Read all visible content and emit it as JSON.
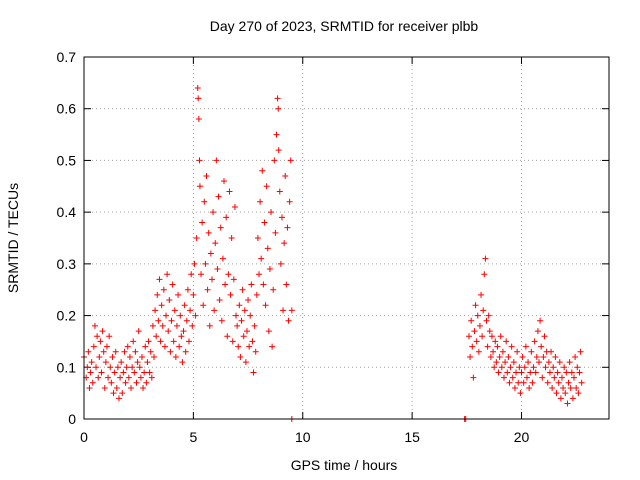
{
  "chart_data": {
    "type": "scatter",
    "title": "Day 270 of 2023, SRMTID for receiver plbb",
    "xlabel": "GPS time / hours",
    "ylabel": "SRMTID / TECUs",
    "xlim": [
      0,
      24
    ],
    "ylim": [
      0,
      0.7
    ],
    "xticks": [
      0,
      5,
      10,
      15,
      20
    ],
    "xtick_labels": [
      "0",
      "5",
      "10",
      "15",
      "20"
    ],
    "yticks": [
      0,
      0.1,
      0.2,
      0.3,
      0.4,
      0.5,
      0.6,
      0.7
    ],
    "ytick_labels": [
      "0",
      "0.1",
      "0.2",
      "0.3",
      "0.4",
      "0.5",
      "0.6",
      "0.7"
    ],
    "grid": true,
    "marker": "+",
    "colors": {
      "series": "#ff0000",
      "grid": "#a0a0a0",
      "axis": "#000000"
    },
    "series": [
      {
        "name": "SRMTID",
        "points": [
          [
            0.0,
            0.12
          ],
          [
            0.1,
            0.08
          ],
          [
            0.15,
            0.1
          ],
          [
            0.2,
            0.13
          ],
          [
            0.25,
            0.06
          ],
          [
            0.3,
            0.09
          ],
          [
            0.35,
            0.11
          ],
          [
            0.4,
            0.07
          ],
          [
            0.45,
            0.14
          ],
          [
            0.5,
            0.18
          ],
          [
            0.55,
            0.1
          ],
          [
            0.6,
            0.16
          ],
          [
            0.65,
            0.08
          ],
          [
            0.7,
            0.12
          ],
          [
            0.75,
            0.15
          ],
          [
            0.8,
            0.09
          ],
          [
            0.85,
            0.17
          ],
          [
            0.9,
            0.13
          ],
          [
            0.95,
            0.06
          ],
          [
            1.0,
            0.11
          ],
          [
            1.05,
            0.14
          ],
          [
            1.1,
            0.08
          ],
          [
            1.15,
            0.16
          ],
          [
            1.2,
            0.1
          ],
          [
            1.25,
            0.07
          ],
          [
            1.3,
            0.12
          ],
          [
            1.35,
            0.05
          ],
          [
            1.4,
            0.09
          ],
          [
            1.45,
            0.13
          ],
          [
            1.5,
            0.06
          ],
          [
            1.55,
            0.1
          ],
          [
            1.6,
            0.04
          ],
          [
            1.65,
            0.08
          ],
          [
            1.7,
            0.11
          ],
          [
            1.75,
            0.05
          ],
          [
            1.8,
            0.09
          ],
          [
            1.85,
            0.13
          ],
          [
            1.9,
            0.07
          ],
          [
            1.95,
            0.1
          ],
          [
            2.0,
            0.14
          ],
          [
            2.05,
            0.08
          ],
          [
            2.1,
            0.12
          ],
          [
            2.15,
            0.06
          ],
          [
            2.2,
            0.1
          ],
          [
            2.25,
            0.15
          ],
          [
            2.3,
            0.09
          ],
          [
            2.35,
            0.13
          ],
          [
            2.4,
            0.07
          ],
          [
            2.45,
            0.11
          ],
          [
            2.5,
            0.17
          ],
          [
            2.55,
            0.1
          ],
          [
            2.6,
            0.08
          ],
          [
            2.65,
            0.12
          ],
          [
            2.7,
            0.06
          ],
          [
            2.75,
            0.09
          ],
          [
            2.8,
            0.14
          ],
          [
            2.85,
            0.07
          ],
          [
            2.9,
            0.11
          ],
          [
            2.95,
            0.15
          ],
          [
            3.0,
            0.09
          ],
          [
            3.05,
            0.13
          ],
          [
            3.1,
            0.08
          ],
          [
            3.15,
            0.18
          ],
          [
            3.2,
            0.12
          ],
          [
            3.25,
            0.21
          ],
          [
            3.3,
            0.16
          ],
          [
            3.35,
            0.24
          ],
          [
            3.4,
            0.19
          ],
          [
            3.45,
            0.27
          ],
          [
            3.5,
            0.15
          ],
          [
            3.55,
            0.22
          ],
          [
            3.6,
            0.18
          ],
          [
            3.65,
            0.25
          ],
          [
            3.7,
            0.14
          ],
          [
            3.75,
            0.2
          ],
          [
            3.8,
            0.28
          ],
          [
            3.85,
            0.17
          ],
          [
            3.9,
            0.23
          ],
          [
            3.95,
            0.13
          ],
          [
            4.0,
            0.19
          ],
          [
            4.05,
            0.26
          ],
          [
            4.1,
            0.15
          ],
          [
            4.15,
            0.21
          ],
          [
            4.2,
            0.12
          ],
          [
            4.25,
            0.18
          ],
          [
            4.3,
            0.24
          ],
          [
            4.35,
            0.14
          ],
          [
            4.4,
            0.2
          ],
          [
            4.45,
            0.16
          ],
          [
            4.5,
            0.11
          ],
          [
            4.55,
            0.17
          ],
          [
            4.6,
            0.22
          ],
          [
            4.65,
            0.13
          ],
          [
            4.7,
            0.19
          ],
          [
            4.75,
            0.25
          ],
          [
            4.8,
            0.15
          ],
          [
            4.85,
            0.21
          ],
          [
            4.9,
            0.28
          ],
          [
            4.95,
            0.18
          ],
          [
            5.0,
            0.24
          ],
          [
            5.05,
            0.3
          ],
          [
            5.1,
            0.2
          ],
          [
            5.15,
            0.35
          ],
          [
            5.2,
            0.64
          ],
          [
            5.22,
            0.62
          ],
          [
            5.25,
            0.58
          ],
          [
            5.28,
            0.5
          ],
          [
            5.3,
            0.45
          ],
          [
            5.35,
            0.28
          ],
          [
            5.4,
            0.38
          ],
          [
            5.45,
            0.22
          ],
          [
            5.5,
            0.42
          ],
          [
            5.55,
            0.3
          ],
          [
            5.6,
            0.47
          ],
          [
            5.65,
            0.25
          ],
          [
            5.7,
            0.36
          ],
          [
            5.75,
            0.18
          ],
          [
            5.8,
            0.32
          ],
          [
            5.85,
            0.27
          ],
          [
            5.9,
            0.4
          ],
          [
            5.95,
            0.21
          ],
          [
            6.0,
            0.34
          ],
          [
            6.05,
            0.5
          ],
          [
            6.1,
            0.29
          ],
          [
            6.15,
            0.43
          ],
          [
            6.2,
            0.23
          ],
          [
            6.25,
            0.37
          ],
          [
            6.3,
            0.19
          ],
          [
            6.35,
            0.31
          ],
          [
            6.4,
            0.46
          ],
          [
            6.45,
            0.26
          ],
          [
            6.5,
            0.39
          ],
          [
            6.55,
            0.16
          ],
          [
            6.6,
            0.28
          ],
          [
            6.65,
            0.44
          ],
          [
            6.7,
            0.24
          ],
          [
            6.75,
            0.35
          ],
          [
            6.8,
            0.15
          ],
          [
            6.85,
            0.27
          ],
          [
            6.9,
            0.41
          ],
          [
            6.95,
            0.2
          ],
          [
            7.0,
            0.18
          ],
          [
            7.05,
            0.14
          ],
          [
            7.1,
            0.22
          ],
          [
            7.15,
            0.12
          ],
          [
            7.2,
            0.19
          ],
          [
            7.25,
            0.25
          ],
          [
            7.3,
            0.16
          ],
          [
            7.35,
            0.21
          ],
          [
            7.4,
            0.11
          ],
          [
            7.45,
            0.17
          ],
          [
            7.5,
            0.23
          ],
          [
            7.55,
            0.14
          ],
          [
            7.6,
            0.2
          ],
          [
            7.65,
            0.26
          ],
          [
            7.7,
            0.15
          ],
          [
            7.75,
            0.09
          ],
          [
            7.8,
            0.18
          ],
          [
            7.85,
            0.13
          ],
          [
            7.9,
            0.24
          ],
          [
            7.95,
            0.35
          ],
          [
            8.0,
            0.28
          ],
          [
            8.05,
            0.42
          ],
          [
            8.1,
            0.31
          ],
          [
            8.15,
            0.48
          ],
          [
            8.2,
            0.26
          ],
          [
            8.25,
            0.38
          ],
          [
            8.3,
            0.22
          ],
          [
            8.35,
            0.45
          ],
          [
            8.4,
            0.33
          ],
          [
            8.45,
            0.17
          ],
          [
            8.5,
            0.29
          ],
          [
            8.55,
            0.4
          ],
          [
            8.6,
            0.14
          ],
          [
            8.65,
            0.25
          ],
          [
            8.7,
            0.5
          ],
          [
            8.75,
            0.36
          ],
          [
            8.8,
            0.55
          ],
          [
            8.85,
            0.62
          ],
          [
            8.88,
            0.6
          ],
          [
            8.9,
            0.52
          ],
          [
            8.95,
            0.44
          ],
          [
            9.0,
            0.3
          ],
          [
            9.05,
            0.39
          ],
          [
            9.1,
            0.21
          ],
          [
            9.15,
            0.34
          ],
          [
            9.2,
            0.47
          ],
          [
            9.25,
            0.26
          ],
          [
            9.3,
            0.37
          ],
          [
            9.35,
            0.19
          ],
          [
            9.4,
            0.42
          ],
          [
            9.45,
            0.5
          ],
          [
            9.5,
            0.21
          ],
          [
            9.5,
            0.0
          ],
          [
            17.4,
            0.0
          ],
          [
            17.45,
            0.0
          ],
          [
            17.6,
            0.16
          ],
          [
            17.65,
            0.12
          ],
          [
            17.7,
            0.19
          ],
          [
            17.75,
            0.14
          ],
          [
            17.8,
            0.08
          ],
          [
            17.85,
            0.17
          ],
          [
            17.9,
            0.22
          ],
          [
            17.95,
            0.15
          ],
          [
            18.0,
            0.2
          ],
          [
            18.05,
            0.13
          ],
          [
            18.1,
            0.18
          ],
          [
            18.15,
            0.24
          ],
          [
            18.2,
            0.16
          ],
          [
            18.25,
            0.21
          ],
          [
            18.3,
            0.28
          ],
          [
            18.35,
            0.31
          ],
          [
            18.4,
            0.19
          ],
          [
            18.45,
            0.14
          ],
          [
            18.5,
            0.2
          ],
          [
            18.55,
            0.17
          ],
          [
            18.6,
            0.12
          ],
          [
            18.65,
            0.16
          ],
          [
            18.7,
            0.13
          ],
          [
            18.75,
            0.1
          ],
          [
            18.8,
            0.15
          ],
          [
            18.85,
            0.11
          ],
          [
            18.9,
            0.14
          ],
          [
            18.95,
            0.09
          ],
          [
            19.0,
            0.12
          ],
          [
            19.05,
            0.16
          ],
          [
            19.1,
            0.1
          ],
          [
            19.15,
            0.13
          ],
          [
            19.2,
            0.08
          ],
          [
            19.25,
            0.11
          ],
          [
            19.3,
            0.15
          ],
          [
            19.35,
            0.09
          ],
          [
            19.4,
            0.12
          ],
          [
            19.45,
            0.07
          ],
          [
            19.5,
            0.1
          ],
          [
            19.55,
            0.14
          ],
          [
            19.6,
            0.08
          ],
          [
            19.65,
            0.11
          ],
          [
            19.7,
            0.06
          ],
          [
            19.75,
            0.09
          ],
          [
            19.8,
            0.13
          ],
          [
            19.85,
            0.07
          ],
          [
            19.9,
            0.1
          ],
          [
            19.95,
            0.05
          ],
          [
            20.0,
            0.09
          ],
          [
            20.05,
            0.12
          ],
          [
            20.1,
            0.07
          ],
          [
            20.15,
            0.1
          ],
          [
            20.2,
            0.14
          ],
          [
            20.25,
            0.08
          ],
          [
            20.3,
            0.11
          ],
          [
            20.35,
            0.06
          ],
          [
            20.4,
            0.09
          ],
          [
            20.45,
            0.13
          ],
          [
            20.5,
            0.07
          ],
          [
            20.55,
            0.1
          ],
          [
            20.6,
            0.15
          ],
          [
            20.65,
            0.09
          ],
          [
            20.7,
            0.12
          ],
          [
            20.75,
            0.17
          ],
          [
            20.8,
            0.11
          ],
          [
            20.85,
            0.19
          ],
          [
            20.9,
            0.14
          ],
          [
            20.95,
            0.08
          ],
          [
            21.0,
            0.12
          ],
          [
            21.05,
            0.16
          ],
          [
            21.1,
            0.1
          ],
          [
            21.15,
            0.13
          ],
          [
            21.2,
            0.07
          ],
          [
            21.25,
            0.11
          ],
          [
            21.3,
            0.09
          ],
          [
            21.35,
            0.13
          ],
          [
            21.4,
            0.06
          ],
          [
            21.45,
            0.1
          ],
          [
            21.5,
            0.08
          ],
          [
            21.55,
            0.12
          ],
          [
            21.6,
            0.05
          ],
          [
            21.65,
            0.09
          ],
          [
            21.7,
            0.07
          ],
          [
            21.75,
            0.11
          ],
          [
            21.8,
            0.04
          ],
          [
            21.85,
            0.08
          ],
          [
            21.9,
            0.06
          ],
          [
            21.95,
            0.1
          ],
          [
            22.0,
            0.05
          ],
          [
            22.05,
            0.09
          ],
          [
            22.1,
            0.03
          ],
          [
            22.15,
            0.07
          ],
          [
            22.2,
            0.11
          ],
          [
            22.25,
            0.06
          ],
          [
            22.3,
            0.09
          ],
          [
            22.35,
            0.04
          ],
          [
            22.4,
            0.08
          ],
          [
            22.45,
            0.12
          ],
          [
            22.5,
            0.06
          ],
          [
            22.55,
            0.1
          ],
          [
            22.6,
            0.05
          ],
          [
            22.65,
            0.09
          ],
          [
            22.7,
            0.13
          ],
          [
            22.75,
            0.07
          ]
        ]
      }
    ]
  }
}
